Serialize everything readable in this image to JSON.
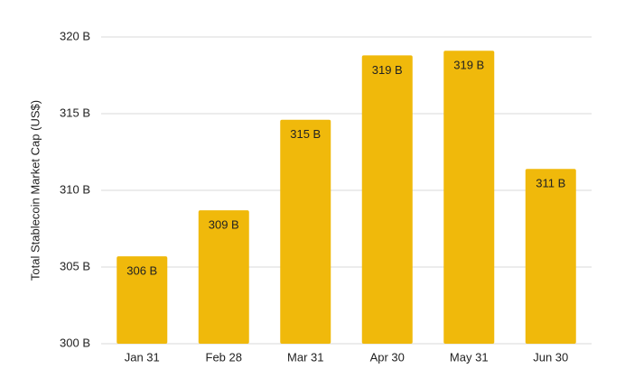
{
  "chart_data": {
    "type": "bar",
    "y_axis_label": "Total Stablecoin Market Cap (US$)",
    "categories": [
      "Jan 31",
      "Feb 28",
      "Mar 31",
      "Apr 30",
      "May 31",
      "Jun 30"
    ],
    "values": [
      305.7,
      308.7,
      314.6,
      318.8,
      319.1,
      311.4
    ],
    "value_labels": [
      "306 B",
      "309 B",
      "315 B",
      "319 B",
      "319 B",
      "311 B"
    ],
    "color": "#f0b90b",
    "ylim": [
      300,
      320
    ],
    "yticks": [
      {
        "value": 300,
        "label": "300 B"
      },
      {
        "value": 305,
        "label": "305 B"
      },
      {
        "value": 310,
        "label": "310 B"
      },
      {
        "value": 315,
        "label": "315 B"
      },
      {
        "value": 320,
        "label": "320 B"
      }
    ],
    "grid": true
  }
}
